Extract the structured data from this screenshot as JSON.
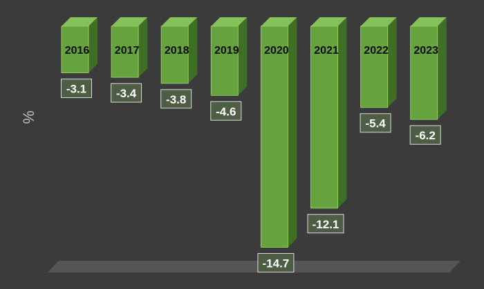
{
  "chart_data": {
    "type": "bar",
    "categories": [
      "2016",
      "2017",
      "2018",
      "2019",
      "2020",
      "2021",
      "2022",
      "2023"
    ],
    "values": [
      -3.1,
      -3.4,
      -3.8,
      -4.6,
      -14.7,
      -12.1,
      -5.4,
      -6.2
    ],
    "value_labels": [
      "-3.1",
      "-3.4",
      "-3.8",
      "-4.6",
      "-14.7",
      "-12.1",
      "-5.4",
      "-6.2"
    ],
    "title": "",
    "xlabel": "",
    "ylabel": "%",
    "ylim": [
      -14.7,
      0
    ],
    "grid": false,
    "legend": "none",
    "colors": {
      "background": "#3b3b3b",
      "bar_front": "#66a33f",
      "bar_side": "#3f6e25",
      "bar_top": "#86c25a",
      "bar_edge": "#8fce63",
      "label_box": "#4e5e44",
      "label_border": "#dcdcdc",
      "label_text": "#ffffff",
      "category_text": "#0b0b0b",
      "axis_text": "#bdbdbd",
      "floor": "#555555"
    }
  }
}
